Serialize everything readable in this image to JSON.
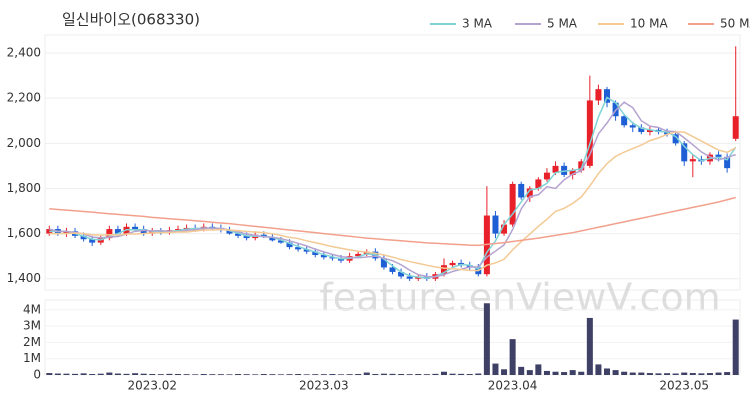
{
  "chart_data": [
    {
      "type": "candlestick",
      "title": "일신바이오(068330)",
      "watermark": "feature.enViewV.com",
      "up_color": "#e8202a",
      "down_color": "#1f5fd6",
      "legend": "top-right",
      "grid": true,
      "ylim": [
        1350,
        2480
      ],
      "yticks": [
        {
          "value": 1400,
          "label": "1,400"
        },
        {
          "value": 1600,
          "label": "1,600"
        },
        {
          "value": 1800,
          "label": "1,800"
        },
        {
          "value": 2000,
          "label": "2,000"
        },
        {
          "value": 2200,
          "label": "2,200"
        },
        {
          "value": 2400,
          "label": "2,400"
        }
      ],
      "open": [
        1600,
        1620,
        1600,
        1610,
        1590,
        1575,
        1560,
        1580,
        1620,
        1600,
        1630,
        1620,
        1600,
        1610,
        1605,
        1615,
        1620,
        1625,
        1620,
        1630,
        1625,
        1615,
        1600,
        1590,
        1580,
        1595,
        1585,
        1570,
        1560,
        1540,
        1530,
        1520,
        1505,
        1495,
        1490,
        1480,
        1500,
        1510,
        1520,
        1490,
        1450,
        1430,
        1410,
        1400,
        1410,
        1400,
        1420,
        1460,
        1470,
        1460,
        1450,
        1420,
        1680,
        1600,
        1640,
        1820,
        1760,
        1800,
        1840,
        1870,
        1900,
        1860,
        1880,
        1900,
        2190,
        2240,
        2180,
        2120,
        2080,
        2070,
        2050,
        2060,
        2050,
        2040,
        2000,
        1920,
        1930,
        1920,
        1950,
        1940,
        2020
      ],
      "high": [
        1635,
        1635,
        1625,
        1625,
        1605,
        1590,
        1595,
        1635,
        1635,
        1645,
        1645,
        1635,
        1625,
        1625,
        1630,
        1635,
        1640,
        1640,
        1645,
        1645,
        1640,
        1630,
        1615,
        1605,
        1610,
        1610,
        1600,
        1585,
        1575,
        1555,
        1545,
        1535,
        1520,
        1510,
        1505,
        1515,
        1520,
        1530,
        1535,
        1505,
        1465,
        1445,
        1425,
        1420,
        1425,
        1430,
        1490,
        1480,
        1485,
        1475,
        1465,
        1810,
        1700,
        1660,
        1830,
        1830,
        1810,
        1850,
        1890,
        1920,
        1915,
        1890,
        1930,
        2300,
        2260,
        2250,
        2190,
        2130,
        2095,
        2085,
        2075,
        2070,
        2065,
        2055,
        2010,
        1950,
        1945,
        1960,
        1965,
        1955,
        2430
      ],
      "low": [
        1590,
        1590,
        1585,
        1580,
        1565,
        1545,
        1550,
        1570,
        1590,
        1590,
        1610,
        1590,
        1590,
        1595,
        1595,
        1605,
        1610,
        1610,
        1610,
        1615,
        1605,
        1595,
        1580,
        1570,
        1570,
        1580,
        1565,
        1555,
        1530,
        1520,
        1510,
        1495,
        1485,
        1480,
        1470,
        1470,
        1490,
        1500,
        1480,
        1440,
        1420,
        1400,
        1390,
        1390,
        1390,
        1390,
        1410,
        1450,
        1450,
        1440,
        1410,
        1410,
        1580,
        1590,
        1630,
        1750,
        1740,
        1790,
        1830,
        1860,
        1850,
        1840,
        1870,
        1890,
        2170,
        2160,
        2100,
        2070,
        2050,
        2040,
        2035,
        2040,
        2030,
        1990,
        1900,
        1850,
        1905,
        1905,
        1920,
        1870,
        2010
      ],
      "close": [
        1620,
        1600,
        1610,
        1590,
        1575,
        1560,
        1580,
        1620,
        1600,
        1630,
        1620,
        1600,
        1610,
        1605,
        1615,
        1620,
        1625,
        1620,
        1630,
        1625,
        1615,
        1600,
        1590,
        1580,
        1595,
        1585,
        1570,
        1560,
        1540,
        1530,
        1520,
        1505,
        1495,
        1490,
        1480,
        1500,
        1510,
        1520,
        1490,
        1450,
        1430,
        1410,
        1400,
        1410,
        1400,
        1420,
        1460,
        1470,
        1460,
        1450,
        1420,
        1680,
        1600,
        1640,
        1820,
        1760,
        1800,
        1840,
        1870,
        1900,
        1860,
        1880,
        1920,
        2190,
        2240,
        2180,
        2120,
        2080,
        2070,
        2050,
        2060,
        2050,
        2040,
        2000,
        1920,
        1930,
        1920,
        1950,
        1940,
        1890,
        2120
      ],
      "series": [
        {
          "name": "3 MA",
          "color": "#7fd3d6",
          "values": [
            1610,
            1610,
            1610,
            1600,
            1588,
            1575,
            1572,
            1587,
            1600,
            1617,
            1617,
            1617,
            1610,
            1605,
            1610,
            1613,
            1620,
            1622,
            1625,
            1625,
            1623,
            1613,
            1602,
            1590,
            1588,
            1587,
            1583,
            1572,
            1557,
            1543,
            1530,
            1518,
            1507,
            1497,
            1488,
            1490,
            1497,
            1510,
            1507,
            1487,
            1457,
            1430,
            1413,
            1407,
            1403,
            1410,
            1427,
            1450,
            1463,
            1460,
            1443,
            1517,
            1567,
            1640,
            1687,
            1740,
            1793,
            1800,
            1823,
            1870,
            1877,
            1880,
            1887,
            1997,
            2117,
            2203,
            2180,
            2127,
            2090,
            2067,
            2060,
            2053,
            2050,
            2030,
            1987,
            1950,
            1923,
            1933,
            1937,
            1927,
            1983
          ]
        },
        {
          "name": "5 MA",
          "color": "#b4a3d1",
          "values": [
            1620,
            1610,
            1610,
            1605,
            1599,
            1585,
            1581,
            1585,
            1587,
            1598,
            1610,
            1614,
            1612,
            1613,
            1610,
            1608,
            1615,
            1617,
            1623,
            1624,
            1623,
            1616,
            1608,
            1598,
            1592,
            1586,
            1584,
            1578,
            1568,
            1557,
            1545,
            1531,
            1519,
            1508,
            1498,
            1494,
            1493,
            1496,
            1500,
            1490,
            1480,
            1462,
            1438,
            1418,
            1410,
            1408,
            1418,
            1432,
            1442,
            1452,
            1452,
            1496,
            1522,
            1550,
            1618,
            1709,
            1764,
            1772,
            1808,
            1800,
            1838,
            1864,
            1878,
            1950,
            2042,
            2090,
            2146,
            2182,
            2158,
            2100,
            2076,
            2070,
            2054,
            2052,
            2024,
            1994,
            1962,
            1940,
            1926,
            1938,
            1950
          ]
        },
        {
          "name": "10 MA",
          "color": "#f3c994",
          "values": [
            1600,
            1600,
            1600,
            1602,
            1600,
            1595,
            1593,
            1595,
            1594,
            1598,
            1598,
            1600,
            1603,
            1604,
            1605,
            1607,
            1607,
            1611,
            1616,
            1616,
            1618,
            1616,
            1613,
            1609,
            1607,
            1604,
            1599,
            1592,
            1583,
            1578,
            1568,
            1560,
            1551,
            1542,
            1535,
            1528,
            1522,
            1518,
            1513,
            1505,
            1496,
            1485,
            1476,
            1468,
            1460,
            1452,
            1447,
            1444,
            1441,
            1437,
            1436,
            1460,
            1470,
            1486,
            1528,
            1564,
            1598,
            1632,
            1664,
            1698,
            1712,
            1734,
            1762,
            1811,
            1866,
            1910,
            1942,
            1961,
            1977,
            1992,
            2012,
            2024,
            2040,
            2050,
            2050,
            2030,
            2010,
            1990,
            1970,
            1960,
            1980
          ]
        },
        {
          "name": "50 MA",
          "color": "#f2a08c",
          "values": [
            1710,
            1707,
            1704,
            1701,
            1698,
            1695,
            1691,
            1688,
            1685,
            1682,
            1679,
            1676,
            1672,
            1669,
            1666,
            1663,
            1660,
            1657,
            1654,
            1650,
            1647,
            1644,
            1640,
            1636,
            1632,
            1628,
            1624,
            1620,
            1616,
            1612,
            1608,
            1604,
            1600,
            1596,
            1592,
            1588,
            1584,
            1580,
            1577,
            1574,
            1571,
            1568,
            1565,
            1562,
            1559,
            1557,
            1555,
            1553,
            1551,
            1549,
            1548,
            1552,
            1556,
            1560,
            1565,
            1570,
            1575,
            1580,
            1586,
            1592,
            1598,
            1604,
            1612,
            1620,
            1628,
            1636,
            1644,
            1652,
            1660,
            1668,
            1676,
            1684,
            1692,
            1700,
            1708,
            1716,
            1724,
            1732,
            1740,
            1750,
            1760
          ]
        }
      ]
    },
    {
      "type": "bar",
      "color": "#3e4066",
      "ylim": [
        0,
        4600000
      ],
      "yticks": [
        0,
        {
          "value": 1000000,
          "label": "1M"
        },
        {
          "value": 2000000,
          "label": "2M"
        },
        {
          "value": 3000000,
          "label": "3M"
        },
        {
          "value": 4000000,
          "label": "4M"
        }
      ],
      "categories": [
        null,
        null,
        null,
        null,
        null,
        null,
        null,
        null,
        null,
        null,
        null,
        null,
        "2023.02",
        null,
        null,
        null,
        null,
        null,
        null,
        null,
        null,
        null,
        null,
        null,
        null,
        null,
        null,
        null,
        null,
        null,
        null,
        null,
        "2023.03",
        null,
        null,
        null,
        null,
        null,
        null,
        null,
        null,
        null,
        null,
        null,
        null,
        null,
        null,
        null,
        null,
        null,
        null,
        null,
        null,
        null,
        "2023.04",
        null,
        null,
        null,
        null,
        null,
        null,
        null,
        null,
        null,
        null,
        null,
        null,
        null,
        null,
        null,
        null,
        null,
        null,
        null,
        "2023.05",
        null,
        null,
        null,
        null,
        null,
        null
      ],
      "values": [
        120000,
        90000,
        80000,
        70000,
        100000,
        60000,
        80000,
        150000,
        90000,
        70000,
        110000,
        80000,
        60000,
        50000,
        70000,
        60000,
        50000,
        40000,
        60000,
        50000,
        50000,
        40000,
        60000,
        50000,
        40000,
        60000,
        50000,
        40000,
        50000,
        60000,
        40000,
        50000,
        50000,
        60000,
        40000,
        50000,
        60000,
        150000,
        60000,
        80000,
        70000,
        60000,
        50000,
        60000,
        50000,
        70000,
        200000,
        80000,
        70000,
        60000,
        90000,
        4400000,
        700000,
        350000,
        2200000,
        500000,
        300000,
        650000,
        250000,
        200000,
        180000,
        300000,
        200000,
        3500000,
        650000,
        400000,
        300000,
        200000,
        150000,
        150000,
        120000,
        100000,
        110000,
        90000,
        150000,
        120000,
        100000,
        120000,
        150000,
        180000,
        3400000
      ]
    }
  ]
}
